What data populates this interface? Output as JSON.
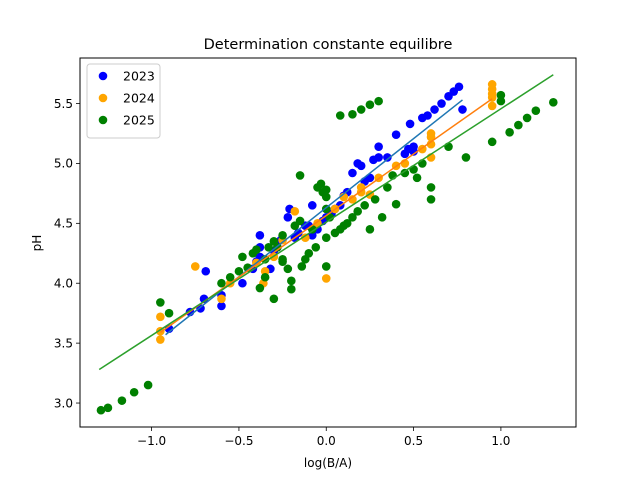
{
  "chart_data": {
    "type": "scatter",
    "title": "Determination constante equilibre",
    "xlabel": "log(B/A)",
    "ylabel": "pH",
    "xlim": [
      -1.41,
      1.43
    ],
    "ylim": [
      2.8,
      5.88
    ],
    "xticks": [
      -1.0,
      -0.5,
      0.0,
      0.5,
      1.0
    ],
    "xtick_labels": [
      "−1.0",
      "−0.5",
      "0.0",
      "0.5",
      "1.0"
    ],
    "yticks": [
      3.0,
      3.5,
      4.0,
      4.5,
      5.0,
      5.5
    ],
    "ytick_labels": [
      "3.0",
      "3.5",
      "4.0",
      "4.5",
      "5.0",
      "5.5"
    ],
    "grid": false,
    "legend": {
      "placement": "top-left"
    },
    "series": [
      {
        "name": "2023",
        "color": "#0000ff",
        "fit_color": "#1f77b4",
        "fit": {
          "x": [
            -0.92,
            0.78
          ],
          "y": [
            3.57,
            5.53
          ]
        },
        "points": [
          [
            -0.9,
            3.62
          ],
          [
            -0.78,
            3.76
          ],
          [
            -0.72,
            3.79
          ],
          [
            -0.7,
            3.87
          ],
          [
            -0.69,
            4.1
          ],
          [
            -0.6,
            3.81
          ],
          [
            -0.6,
            3.9
          ],
          [
            -0.48,
            4.0
          ],
          [
            -0.42,
            4.12
          ],
          [
            -0.4,
            4.18
          ],
          [
            -0.38,
            4.22
          ],
          [
            -0.38,
            4.3
          ],
          [
            -0.38,
            4.4
          ],
          [
            -0.32,
            4.12
          ],
          [
            -0.3,
            4.27
          ],
          [
            -0.28,
            4.3
          ],
          [
            -0.26,
            4.36
          ],
          [
            -0.22,
            4.55
          ],
          [
            -0.21,
            4.62
          ],
          [
            -0.18,
            4.38
          ],
          [
            -0.16,
            4.42
          ],
          [
            -0.12,
            4.48
          ],
          [
            -0.1,
            4.48
          ],
          [
            -0.08,
            4.4
          ],
          [
            -0.08,
            4.65
          ],
          [
            -0.05,
            4.45
          ],
          [
            -0.02,
            4.52
          ],
          [
            0.0,
            4.55
          ],
          [
            0.03,
            4.58
          ],
          [
            0.05,
            4.62
          ],
          [
            0.08,
            4.65
          ],
          [
            0.1,
            4.73
          ],
          [
            0.12,
            4.76
          ],
          [
            0.15,
            4.92
          ],
          [
            0.18,
            5.0
          ],
          [
            0.2,
            4.98
          ],
          [
            0.22,
            4.85
          ],
          [
            0.25,
            4.88
          ],
          [
            0.27,
            5.03
          ],
          [
            0.3,
            5.05
          ],
          [
            0.3,
            5.14
          ],
          [
            0.35,
            5.05
          ],
          [
            0.4,
            5.24
          ],
          [
            0.45,
            5.08
          ],
          [
            0.47,
            5.12
          ],
          [
            0.48,
            5.33
          ],
          [
            0.5,
            5.1
          ],
          [
            0.5,
            5.14
          ],
          [
            0.55,
            5.38
          ],
          [
            0.58,
            5.4
          ],
          [
            0.62,
            5.45
          ],
          [
            0.66,
            5.5
          ],
          [
            0.7,
            5.56
          ],
          [
            0.73,
            5.6
          ],
          [
            0.76,
            5.64
          ],
          [
            0.78,
            5.45
          ]
        ]
      },
      {
        "name": "2024",
        "color": "#ffa500",
        "fit_color": "#ff7f0e",
        "fit": {
          "x": [
            -0.95,
            0.95
          ],
          "y": [
            3.59,
            5.54
          ]
        },
        "points": [
          [
            -0.95,
            3.53
          ],
          [
            -0.95,
            3.6
          ],
          [
            -0.95,
            3.72
          ],
          [
            -0.75,
            4.14
          ],
          [
            -0.6,
            3.87
          ],
          [
            -0.55,
            4.0
          ],
          [
            -0.4,
            4.17
          ],
          [
            -0.36,
            4.0
          ],
          [
            -0.35,
            4.1
          ],
          [
            -0.3,
            4.22
          ],
          [
            -0.25,
            4.36
          ],
          [
            -0.18,
            4.6
          ],
          [
            -0.12,
            4.38
          ],
          [
            -0.05,
            4.5
          ],
          [
            0.0,
            4.04
          ],
          [
            0.05,
            4.62
          ],
          [
            0.1,
            4.72
          ],
          [
            0.15,
            4.7
          ],
          [
            0.2,
            4.76
          ],
          [
            0.2,
            4.8
          ],
          [
            0.25,
            4.74
          ],
          [
            0.3,
            4.88
          ],
          [
            0.4,
            4.98
          ],
          [
            0.45,
            5.0
          ],
          [
            0.55,
            5.12
          ],
          [
            0.6,
            5.16
          ],
          [
            0.6,
            5.22
          ],
          [
            0.6,
            5.25
          ],
          [
            0.6,
            5.05
          ],
          [
            0.95,
            5.48
          ],
          [
            0.95,
            5.55
          ],
          [
            0.95,
            5.58
          ],
          [
            0.95,
            5.62
          ],
          [
            0.95,
            5.66
          ]
        ]
      },
      {
        "name": "2025",
        "color": "#008000",
        "fit_color": "#2ca02c",
        "fit": {
          "x": [
            -1.3,
            1.3
          ],
          "y": [
            3.28,
            5.74
          ]
        },
        "points": [
          [
            -1.29,
            2.94
          ],
          [
            -1.25,
            2.96
          ],
          [
            -1.17,
            3.02
          ],
          [
            -1.1,
            3.09
          ],
          [
            -1.02,
            3.15
          ],
          [
            -0.95,
            3.84
          ],
          [
            -0.6,
            4.0
          ],
          [
            -0.55,
            4.05
          ],
          [
            -0.5,
            4.1
          ],
          [
            -0.45,
            4.13
          ],
          [
            -0.48,
            4.22
          ],
          [
            -0.42,
            4.25
          ],
          [
            -0.4,
            4.28
          ],
          [
            -0.35,
            4.2
          ],
          [
            -0.33,
            4.3
          ],
          [
            -0.3,
            4.35
          ],
          [
            -0.28,
            4.3
          ],
          [
            -0.3,
            3.87
          ],
          [
            -0.25,
            4.2
          ],
          [
            -0.25,
            4.4
          ],
          [
            -0.22,
            4.12
          ],
          [
            -0.2,
            4.02
          ],
          [
            -0.18,
            4.48
          ],
          [
            -0.15,
            4.52
          ],
          [
            -0.14,
            4.14
          ],
          [
            -0.12,
            4.2
          ],
          [
            -0.1,
            4.25
          ],
          [
            -0.08,
            4.45
          ],
          [
            -0.06,
            4.3
          ],
          [
            -0.05,
            4.8
          ],
          [
            -0.03,
            4.83
          ],
          [
            0.0,
            4.78
          ],
          [
            0.0,
            4.72
          ],
          [
            -0.02,
            4.76
          ],
          [
            0.0,
            4.38
          ],
          [
            0.02,
            4.55
          ],
          [
            0.05,
            4.42
          ],
          [
            0.08,
            4.45
          ],
          [
            0.1,
            4.48
          ],
          [
            0.12,
            4.5
          ],
          [
            0.15,
            4.55
          ],
          [
            0.18,
            4.6
          ],
          [
            0.22,
            4.65
          ],
          [
            0.25,
            4.45
          ],
          [
            0.28,
            4.7
          ],
          [
            0.32,
            4.55
          ],
          [
            0.35,
            4.8
          ],
          [
            0.38,
            4.9
          ],
          [
            0.4,
            4.66
          ],
          [
            0.45,
            4.92
          ],
          [
            0.5,
            4.95
          ],
          [
            0.52,
            4.88
          ],
          [
            0.55,
            5.0
          ],
          [
            0.6,
            4.8
          ],
          [
            0.6,
            4.7
          ],
          [
            0.8,
            5.05
          ],
          [
            0.7,
            5.14
          ],
          [
            0.08,
            5.4
          ],
          [
            0.15,
            5.41
          ],
          [
            0.2,
            5.45
          ],
          [
            0.25,
            5.49
          ],
          [
            0.3,
            5.52
          ],
          [
            -0.15,
            4.9
          ],
          [
            -0.25,
            4.18
          ],
          [
            0.0,
            4.14
          ],
          [
            0.0,
            4.62
          ],
          [
            -0.9,
            3.75
          ],
          [
            0.95,
            5.18
          ],
          [
            1.0,
            5.52
          ],
          [
            1.0,
            5.57
          ],
          [
            1.05,
            5.26
          ],
          [
            1.1,
            5.32
          ],
          [
            1.15,
            5.38
          ],
          [
            1.2,
            5.44
          ],
          [
            1.3,
            5.51
          ],
          [
            -0.38,
            3.96
          ],
          [
            -0.2,
            3.95
          ],
          [
            -0.35,
            4.05
          ]
        ]
      }
    ]
  }
}
